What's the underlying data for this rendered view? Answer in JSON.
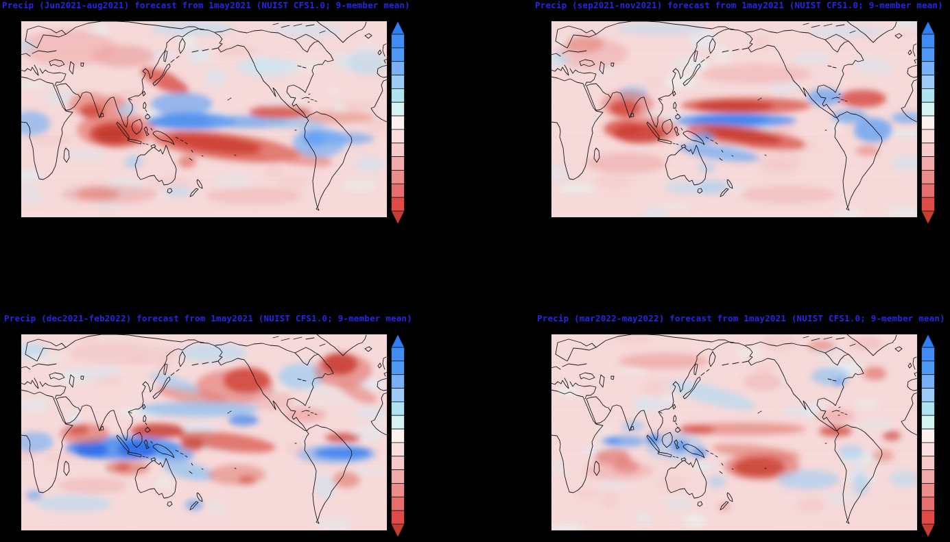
{
  "app": {
    "description": "Four-panel seasonal precipitation anomaly forecast figure (GrADS-style plots) on a black background"
  },
  "colors": {
    "background": "#000000",
    "title_text": "#2626e8",
    "map_base": "#f6d9d9",
    "coastline": "#15151a",
    "gridline": "#d89898"
  },
  "panels": [
    {
      "season_label": "Jun2021-aug2021",
      "title": "Precip (Jun2021-aug2021) forecast from 1may2021 (NUIST CFS1.0; 9-member mean)"
    },
    {
      "season_label": "sep2021-nov2021",
      "title": "Precip (sep2021-nov2021) forecast from 1may2021 (NUIST CFS1.0; 9-member mean)"
    },
    {
      "season_label": "dec2021-feb2022",
      "title": "Precip (dec2021-feb2022) forecast from 1may2021 (NUIST CFS1.0; 9-member mean)"
    },
    {
      "season_label": "mar2022-may2022",
      "title": "Precip (mar2022-may2022) forecast from 1may2021 (NUIST CFS1.0; 9-member mean)"
    }
  ],
  "colorbar": {
    "orientation": "vertical",
    "numeric_labels_shown": false,
    "top_arrow_color": "#2e7df2",
    "bottom_arrow_color": "#c93c31",
    "segments_top_to_bottom": [
      "#3f8df4",
      "#4f9af5",
      "#78b1f5",
      "#9ecbf6",
      "#aee3f0",
      "#d5f3f0",
      "#fdf1f0",
      "#fadfde",
      "#f7c9c8",
      "#f2abaa",
      "#ec8d8b",
      "#e66e6c",
      "#e14b47"
    ]
  },
  "chart_data": {
    "type": "heatmap",
    "figure": "Seasonal precipitation anomaly forecasts from NUIST CFS1.0 initialized 1 May 2021, 9-member ensemble mean",
    "layout": "2x2 grid of Pacific-centered global latitude-longitude maps, each with a blue-to-red vertical colorbar with arrow end caps and no numeric labels",
    "map_domain": {
      "lon": [
        0,
        360
      ],
      "lat": [
        -60,
        75
      ],
      "projection": "equirectangular"
    },
    "color_scale": {
      "blue_end": "wet / positive precipitation anomaly",
      "red_end": "dry / negative precipitation anomaly",
      "levels_shown": 13
    },
    "panels": [
      {
        "position": "top-left",
        "season": "Jun2021-aug2021",
        "initialized": "1may2021",
        "model": "NUIST CFS1.0",
        "ensemble": "9-member mean",
        "key_features": [
          "Wet (blue) band along the equatorial west-central Pacific extending to Central America",
          "Strong dry (red) band over the South Pacific from New Guinea toward 130W",
          "Dry anomalies over the eastern Indian Ocean, Sumatra-Java and the Arabian Sea",
          "Dry band over the Caribbean and tropical North Atlantic",
          "Wet anomalies over northwestern South America",
          "Weak pink (dry) anomalies over most mid-latitude continents"
        ]
      },
      {
        "position": "top-right",
        "season": "sep2021-nov2021",
        "initialized": "1may2021",
        "model": "NUIST CFS1.0",
        "ensemble": "9-member mean",
        "key_features": [
          "Dry band across the North Pacific near 10-20N",
          "Wet (blue) band along the equator in the west-central Pacific",
          "Strong dry band just south of the equator sloping southeast across the central Pacific",
          "Dry anomalies over India, the Arabian Sea and the western Maritime Continent",
          "Wet anomalies off Mexico and over northwestern South America",
          "Dry anomalies over the Caribbean and tropical North Atlantic"
        ]
      },
      {
        "position": "bottom-left",
        "season": "dec2021-feb2022",
        "initialized": "1may2021",
        "model": "NUIST CFS1.0",
        "ensemble": "9-member mean",
        "key_features": [
          "Strong wet (blue) band across the equatorial Indian Ocean and Maritime Continent",
          "Dry band from the Philippine Sea east-southeast across the central Pacific",
          "Wet band across the subtropical North Pacific near 25-30N",
          "Strong dry anomalies over the Gulf of Alaska and the northwest Atlantic",
          "Dry Atlantic ITCZ with a strong wet band over the equatorial Atlantic and northeast Brazil",
          "Dry anomalies over northwest Australia and the southwest Indian Ocean"
        ]
      },
      {
        "position": "bottom-right",
        "season": "mar2022-may2022",
        "initialized": "1may2021",
        "model": "NUIST CFS1.0",
        "ensemble": "9-member mean",
        "key_features": [
          "Weaker, mottled anomalies overall",
          "Dry band near 10N across the Pacific reaching Central America",
          "Strong dry patch in the central South Pacific near 10-20S",
          "Wet patches over the Maritime Continent and equatorial Indian Ocean",
          "Wet anomalies over eastern Canada; dry spot south of Greenland",
          "Dry anomalies over the western Indian Ocean near 5-15S"
        ]
      }
    ]
  }
}
